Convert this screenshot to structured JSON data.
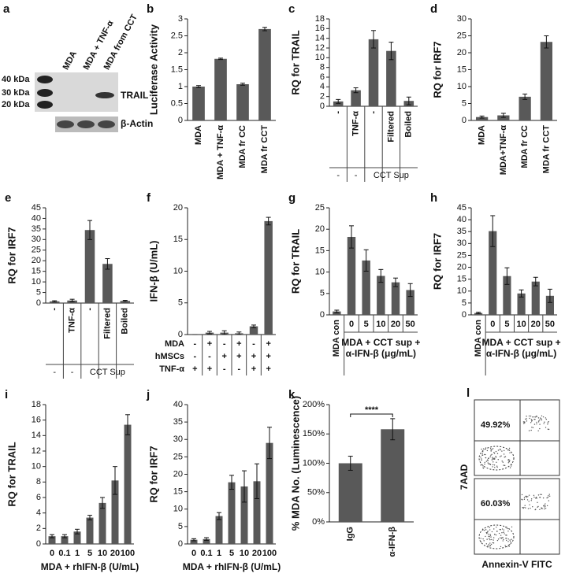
{
  "blot": {
    "panel": "a",
    "markers": [
      "40 kDa",
      "30 kDa",
      "20 kDa"
    ],
    "lanes": [
      "MDA",
      "MDA + TNF-α",
      "MDA from CCT"
    ],
    "bands": [
      "TRAIL",
      "β-Actin"
    ]
  },
  "flow": {
    "panel": "l",
    "y_label": "7AAD",
    "x_label": "Annexin-V FITC",
    "gates": [
      "49.92%",
      "60.03%"
    ]
  },
  "chart_data": [
    {
      "type": "bar",
      "panel": "b",
      "y_label": "Luciferase Activity",
      "color": "#595959",
      "categories": [
        "MDA",
        "MDA + TNF-α",
        "MDA fr CC",
        "MDA fr CCT"
      ],
      "values": [
        1.0,
        1.82,
        1.07,
        2.7
      ],
      "errors": [
        0.03,
        0.02,
        0.03,
        0.05
      ],
      "ylim": [
        0,
        3
      ],
      "yticks": [
        0,
        0.5,
        1,
        1.5,
        2,
        2.5,
        3
      ]
    },
    {
      "type": "bar",
      "panel": "c",
      "y_label": "RQ for TRAIL",
      "color": "#595959",
      "categories": [
        "-",
        "TNF-α",
        "-",
        "Filtered",
        "Boiled"
      ],
      "groups": [
        "-",
        "-",
        "CCT Sup"
      ],
      "values": [
        1,
        3.3,
        13.8,
        11.4,
        1.1
      ],
      "errors": [
        0.4,
        0.5,
        1.8,
        1.8,
        0.8
      ],
      "ylim": [
        0,
        18
      ],
      "yticks": [
        0,
        2,
        4,
        6,
        8,
        10,
        12,
        14,
        16,
        18
      ]
    },
    {
      "type": "bar",
      "panel": "d",
      "y_label": "RQ for IRF7",
      "color": "#595959",
      "categories": [
        "MDA",
        "MDA+TNF-α",
        "MDA fr CC",
        "MDA fr CCT"
      ],
      "values": [
        1,
        1.5,
        7,
        23.2
      ],
      "errors": [
        0.3,
        0.6,
        0.8,
        1.8
      ],
      "ylim": [
        0,
        30
      ],
      "yticks": [
        0,
        5,
        10,
        15,
        20,
        25,
        30
      ]
    },
    {
      "type": "bar",
      "panel": "e",
      "y_label": "RQ for IRF7",
      "color": "#595959",
      "categories": [
        "-",
        "TNF-α",
        "-",
        "Filtered",
        "Boiled"
      ],
      "groups": [
        "-",
        "-",
        "CCT Sup"
      ],
      "values": [
        0.8,
        1.2,
        34.5,
        18.5,
        1.0
      ],
      "errors": [
        0.3,
        0.6,
        4.5,
        2.5,
        0.3
      ],
      "ylim": [
        0,
        45
      ],
      "yticks": [
        0,
        5,
        10,
        15,
        20,
        25,
        30,
        35,
        40,
        45
      ]
    },
    {
      "type": "bar",
      "panel": "f",
      "y_label": "IFN-β (U/mL)",
      "color": "#595959",
      "values": [
        0,
        0.3,
        0.3,
        0.2,
        1.3,
        17.9
      ],
      "errors": [
        0,
        0.2,
        0.3,
        0.2,
        0.2,
        0.6
      ],
      "rows": [
        {
          "name": "MDA",
          "values": [
            "-",
            "+",
            "-",
            "+",
            "-",
            "+"
          ]
        },
        {
          "name": "hMSCs",
          "values": [
            "-",
            "-",
            "+",
            "+",
            "+",
            "+"
          ]
        },
        {
          "name": "TNF-α",
          "values": [
            "+",
            "+",
            "-",
            "-",
            "+",
            "+"
          ]
        }
      ],
      "ylim": [
        0,
        20
      ],
      "yticks": [
        0,
        5,
        10,
        15,
        20
      ]
    },
    {
      "type": "bar",
      "panel": "g",
      "y_label": "RQ for TRAIL",
      "color": "#595959",
      "x_label": [
        "MDA + CCT sup +",
        "α-IFN-β (μg/mL)"
      ],
      "categories": [
        "MDA con",
        "0",
        "5",
        "10",
        "20",
        "50"
      ],
      "values": [
        0.8,
        18.2,
        12.7,
        9.1,
        7.6,
        5.8
      ],
      "errors": [
        0.3,
        2.6,
        2.5,
        1.5,
        1,
        1.5
      ],
      "ylim": [
        0,
        25
      ],
      "yticks": [
        0,
        5,
        10,
        15,
        20,
        25
      ]
    },
    {
      "type": "bar",
      "panel": "h",
      "y_label": "RQ for IRF7",
      "color": "#595959",
      "x_label": [
        "MDA + CCT sup +",
        "α-IFN-β (μg/mL)"
      ],
      "categories": [
        "MDA con",
        "0",
        "5",
        "10",
        "20",
        "50"
      ],
      "values": [
        0.8,
        35.2,
        16.3,
        9,
        14,
        8
      ],
      "errors": [
        0.3,
        6.5,
        3.5,
        1.5,
        1.8,
        2.8
      ],
      "ylim": [
        0,
        45
      ],
      "yticks": [
        0,
        5,
        10,
        15,
        20,
        25,
        30,
        35,
        40,
        45
      ]
    },
    {
      "type": "bar",
      "panel": "i",
      "y_label": "RQ for TRAIL",
      "color": "#595959",
      "x_label": [
        "MDA + rhIFN-β  (U/mL)"
      ],
      "categories": [
        "0",
        "0.1",
        "1",
        "5",
        "10",
        "20",
        "100"
      ],
      "values": [
        1,
        1,
        1.6,
        3.4,
        5.3,
        8.2,
        15.4
      ],
      "errors": [
        0.2,
        0.2,
        0.3,
        0.3,
        0.7,
        1.8,
        1.3
      ],
      "ylim": [
        0,
        18
      ],
      "yticks": [
        0,
        2,
        4,
        6,
        8,
        10,
        12,
        14,
        16,
        18
      ]
    },
    {
      "type": "bar",
      "panel": "j",
      "y_label": "RQ for IRF7",
      "color": "#595959",
      "x_label": [
        "MDA + rhIFN-β  (U/mL)"
      ],
      "categories": [
        "0",
        "0.1",
        "1",
        "5",
        "10",
        "20",
        "100"
      ],
      "values": [
        1.2,
        1.4,
        8,
        17.7,
        16.5,
        18,
        29
      ],
      "errors": [
        0.3,
        0.4,
        1,
        2,
        4.5,
        5,
        4.5
      ],
      "ylim": [
        0,
        40
      ],
      "yticks": [
        0,
        5,
        10,
        15,
        20,
        25,
        30,
        35,
        40
      ]
    },
    {
      "type": "bar",
      "panel": "k",
      "y_label": "% MDA No. (Luminescence)",
      "color": "#595959",
      "categories": [
        "IgG",
        "α-IFN-β"
      ],
      "annotation": "****",
      "values": [
        100,
        158
      ],
      "errors": [
        12,
        18
      ],
      "ylim": [
        0,
        200
      ],
      "yticks": [
        {
          "value": 0,
          "label": "0%"
        },
        {
          "value": 50,
          "label": "50%"
        },
        {
          "value": 100,
          "label": "100%"
        },
        {
          "value": 150,
          "label": "150%"
        },
        {
          "value": 200,
          "label": "200%"
        }
      ]
    }
  ]
}
